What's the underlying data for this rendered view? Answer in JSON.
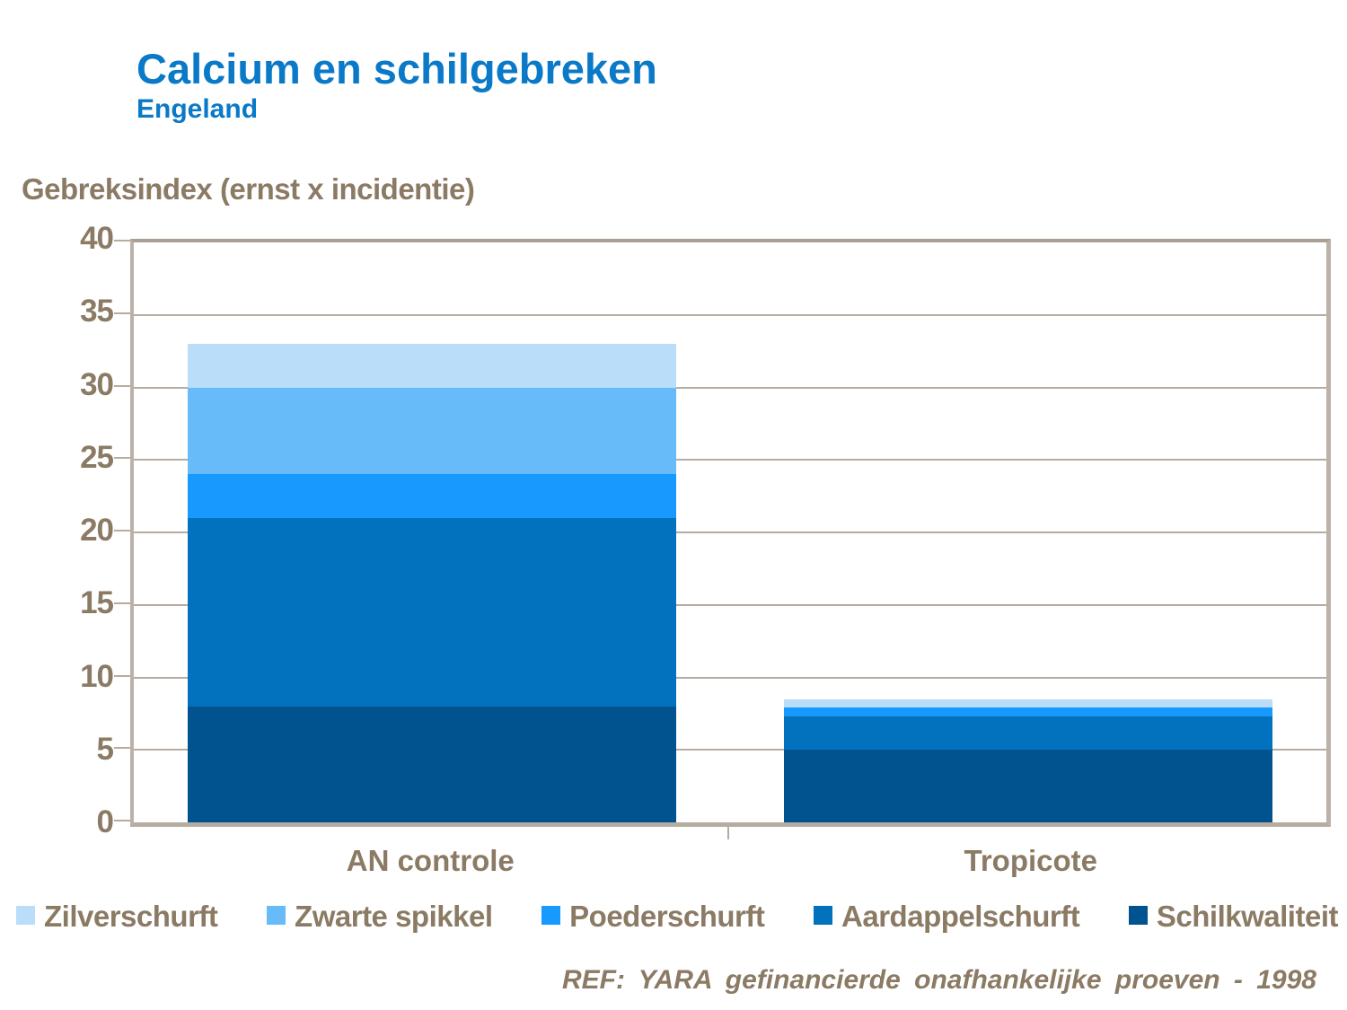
{
  "chart_data": {
    "type": "bar",
    "stacked": true,
    "title": "Calcium en schilgebreken",
    "subtitle": "Engeland",
    "ylabel": "Gebreksindex (ernst x incidentie)",
    "categories": [
      "AN controle",
      "Tropicote"
    ],
    "series": [
      {
        "name": "Schilkwaliteit",
        "color": "#01538F",
        "values": [
          8,
          5
        ]
      },
      {
        "name": "Aardappelschurft",
        "color": "#0272BE",
        "values": [
          13,
          2.3
        ]
      },
      {
        "name": "Poederschurft",
        "color": "#1899FE",
        "values": [
          3,
          0.6
        ]
      },
      {
        "name": "Zwarte spikkel",
        "color": "#66BBF8",
        "values": [
          6,
          0
        ]
      },
      {
        "name": "Zilverschurft",
        "color": "#BADDFA",
        "values": [
          3,
          0.6
        ]
      }
    ],
    "stack_order_bottom_to_top": [
      "Schilkwaliteit",
      "Aardappelschurft",
      "Poederschurft",
      "Zwarte spikkel",
      "Zilverschurft"
    ],
    "legend": [
      "Zilverschurft",
      "Zwarte spikkel",
      "Poederschurft",
      "Aardappelschurft",
      "Schilkwaliteit"
    ],
    "totals": [
      33,
      8.5
    ],
    "ylim": [
      0,
      40
    ],
    "ytick_step": 5,
    "grid": true,
    "legend_position": "bottom",
    "footer": "REF: YARA gefinancierde onafhankelijke proeven - 1998",
    "colors": {
      "title_blue": "#0979C8",
      "text_brown": "#8B7A64",
      "frame_tan": "#BCB1A6",
      "gridline_tan": "#B6ACA1",
      "background": "#FFFFFF"
    }
  }
}
